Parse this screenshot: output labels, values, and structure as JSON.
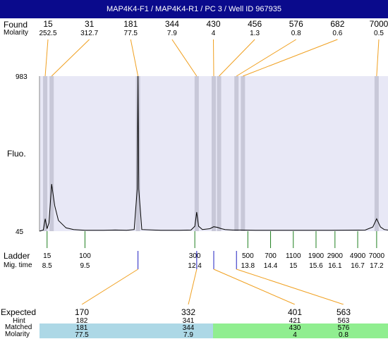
{
  "title": "MAP4K4-F1 / MAP4K4-R1 / PC 3 / Well ID 967935",
  "labels": {
    "found": "Found",
    "molarity": "Molarity",
    "fluo": "Fluo.",
    "ladder": "Ladder",
    "mig_time": "Mig. time",
    "expected": "Expected",
    "hint": "Hint",
    "matched": "Matched",
    "molarity2": "Molarity"
  },
  "colors": {
    "title_bg": "#0a0a8c",
    "plot_bg": "#e8e8f6",
    "highlight": "#c8c8d8",
    "leader": "#f0a020",
    "ladder_tick": "#208020",
    "band_blue": "#add8e6",
    "band_green": "#90ee90"
  },
  "chart_data": {
    "type": "line",
    "y_axis": {
      "min": 45,
      "max": 983,
      "tick_labels": [
        "983",
        "45"
      ]
    },
    "found_peaks": [
      {
        "size": "15",
        "molarity": "252.5",
        "x": 8.45
      },
      {
        "size": "31",
        "molarity": "312.7",
        "x": 8.62
      },
      {
        "size": "181",
        "molarity": "77.5",
        "x": 10.9
      },
      {
        "size": "344",
        "molarity": "7.9",
        "x": 12.45
      },
      {
        "size": "430",
        "molarity": "4",
        "x": 12.9
      },
      {
        "size": "456",
        "molarity": "1.3",
        "x": 13.04
      },
      {
        "size": "576",
        "molarity": "0.8",
        "x": 13.5
      },
      {
        "size": "682",
        "molarity": "0.6",
        "x": 13.67
      },
      {
        "size": "7000",
        "molarity": "0.5",
        "x": 17.2
      }
    ],
    "ladder": [
      {
        "size": "15",
        "time": "8.5"
      },
      {
        "size": "100",
        "time": "9.5"
      },
      {
        "size": "300",
        "time": "12.4"
      },
      {
        "size": "500",
        "time": "13.8"
      },
      {
        "size": "700",
        "time": "14.4"
      },
      {
        "size": "1100",
        "time": "15"
      },
      {
        "size": "1900",
        "time": "15.6"
      },
      {
        "size": "2900",
        "time": "16.1"
      },
      {
        "size": "4900",
        "time": "16.7"
      },
      {
        "size": "7000",
        "time": "17.2"
      }
    ],
    "expected": [
      {
        "expected": "170",
        "hint": "182",
        "matched": "181",
        "molarity": "77.5",
        "band": "blue"
      },
      {
        "expected": "332",
        "hint": "341",
        "matched": "344",
        "molarity": "7.9",
        "band": "blue"
      },
      {
        "expected": "401",
        "hint": "421",
        "matched": "430",
        "molarity": "4",
        "band": "green"
      },
      {
        "expected": "563",
        "hint": "563",
        "matched": "576",
        "molarity": "0.8",
        "band": "green"
      }
    ],
    "trace": [
      [
        8.3,
        45
      ],
      [
        8.4,
        52
      ],
      [
        8.45,
        120
      ],
      [
        8.5,
        60
      ],
      [
        8.55,
        95
      ],
      [
        8.62,
        330
      ],
      [
        8.7,
        200
      ],
      [
        8.8,
        110
      ],
      [
        9.0,
        65
      ],
      [
        9.2,
        55
      ],
      [
        9.5,
        50
      ],
      [
        10.0,
        50
      ],
      [
        10.3,
        52
      ],
      [
        10.6,
        50
      ],
      [
        10.8,
        55
      ],
      [
        10.88,
        300
      ],
      [
        10.9,
        983
      ],
      [
        10.92,
        300
      ],
      [
        11.0,
        55
      ],
      [
        11.5,
        50
      ],
      [
        12.0,
        50
      ],
      [
        12.3,
        52
      ],
      [
        12.4,
        75
      ],
      [
        12.45,
        160
      ],
      [
        12.5,
        75
      ],
      [
        12.6,
        55
      ],
      [
        12.8,
        60
      ],
      [
        12.9,
        72
      ],
      [
        13.0,
        68
      ],
      [
        13.1,
        60
      ],
      [
        13.2,
        55
      ],
      [
        13.4,
        52
      ],
      [
        13.6,
        52
      ],
      [
        14.0,
        50
      ],
      [
        14.5,
        50
      ],
      [
        15.0,
        50
      ],
      [
        16.0,
        50
      ],
      [
        16.9,
        52
      ],
      [
        17.1,
        70
      ],
      [
        17.2,
        120
      ],
      [
        17.3,
        70
      ],
      [
        17.4,
        55
      ],
      [
        17.5,
        52
      ]
    ]
  }
}
